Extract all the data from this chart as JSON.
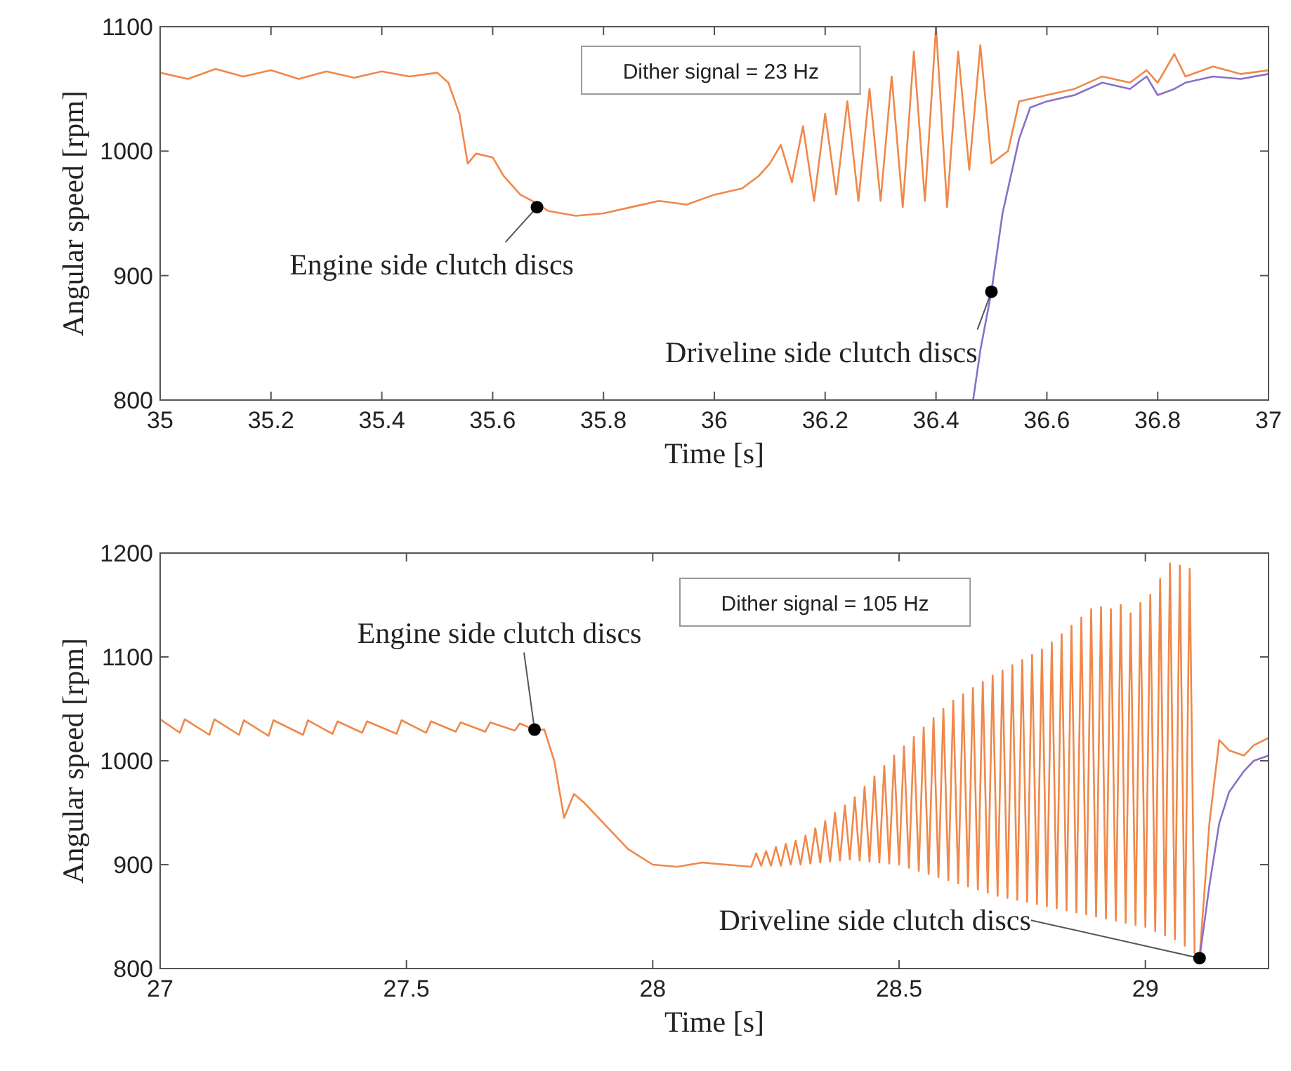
{
  "chart_data": [
    {
      "type": "line",
      "xlabel": "Time [s]",
      "ylabel": "Angular speed [rpm]",
      "xlim": [
        35,
        37
      ],
      "ylim": [
        800,
        1100
      ],
      "xticks": [
        35,
        35.2,
        35.4,
        35.6,
        35.8,
        36,
        36.2,
        36.4,
        36.6,
        36.8,
        37
      ],
      "yticks": [
        800,
        900,
        1000,
        1100
      ],
      "series": [
        {
          "color": "#f0884a",
          "x": [
            35.0,
            35.05,
            35.1,
            35.15,
            35.2,
            35.25,
            35.3,
            35.35,
            35.4,
            35.45,
            35.5,
            35.52,
            35.54,
            35.555,
            35.57,
            35.6,
            35.62,
            35.65,
            35.68,
            35.7,
            35.75,
            35.8,
            35.85,
            35.9,
            35.95,
            36.0,
            36.05,
            36.08,
            36.1,
            36.12,
            36.14,
            36.16,
            36.18,
            36.2,
            36.22,
            36.24,
            36.26,
            36.28,
            36.3,
            36.32,
            36.34,
            36.36,
            36.38,
            36.4,
            36.42,
            36.44,
            36.46,
            36.48,
            36.5,
            36.53,
            36.55,
            36.6,
            36.65,
            36.7,
            36.75,
            36.78,
            36.8,
            36.83,
            36.85,
            36.9,
            36.95,
            37.0
          ],
          "values": [
            1063,
            1058,
            1066,
            1060,
            1065,
            1058,
            1064,
            1059,
            1064,
            1060,
            1063,
            1055,
            1030,
            990,
            998,
            995,
            980,
            965,
            958,
            952,
            948,
            950,
            955,
            960,
            957,
            965,
            970,
            980,
            990,
            1005,
            975,
            1020,
            960,
            1030,
            965,
            1040,
            960,
            1050,
            960,
            1060,
            955,
            1080,
            960,
            1100,
            955,
            1080,
            985,
            1085,
            990,
            1000,
            1040,
            1045,
            1050,
            1060,
            1055,
            1065,
            1055,
            1078,
            1060,
            1068,
            1062,
            1065
          ]
        },
        {
          "color": "#8a70c8",
          "x": [
            36.467,
            36.48,
            36.5,
            36.52,
            36.55,
            36.57,
            36.6,
            36.65,
            36.7,
            36.75,
            36.78,
            36.8,
            36.83,
            36.85,
            36.9,
            36.95,
            37.0
          ],
          "values": [
            800,
            840,
            887,
            950,
            1010,
            1035,
            1040,
            1045,
            1055,
            1050,
            1060,
            1045,
            1050,
            1055,
            1060,
            1058,
            1062
          ]
        }
      ],
      "annotations": [
        "Dither signal = 23 Hz",
        {
          "text": "Engine side clutch discs",
          "x": 35.68,
          "y": 955
        },
        {
          "text": "Driveline side clutch discs",
          "x": 36.5,
          "y": 887
        }
      ]
    },
    {
      "type": "line",
      "xlabel": "Time [s]",
      "ylabel": "Angular speed [rpm]",
      "xlim": [
        27,
        29.25
      ],
      "ylim": [
        800,
        1200
      ],
      "xticks": [
        27,
        27.5,
        28,
        28.5,
        29
      ],
      "yticks": [
        800,
        900,
        1000,
        1100,
        1200
      ],
      "series": [
        {
          "color": "#f0884a",
          "x": [
            27.0,
            27.04,
            27.05,
            27.1,
            27.11,
            27.16,
            27.17,
            27.22,
            27.23,
            27.29,
            27.3,
            27.35,
            27.36,
            27.41,
            27.42,
            27.48,
            27.49,
            27.54,
            27.55,
            27.6,
            27.61,
            27.66,
            27.67,
            27.72,
            27.73,
            27.76,
            27.78,
            27.8,
            27.82,
            27.84,
            27.86,
            27.9,
            27.95,
            28.0,
            28.05,
            28.1,
            28.15,
            28.2,
            28.21,
            28.22,
            28.23,
            28.24,
            28.25,
            28.26,
            28.27,
            28.28,
            28.29,
            28.3,
            28.31,
            28.32,
            28.33,
            28.34,
            28.35,
            28.36,
            28.37,
            28.38,
            28.39,
            28.4,
            28.41,
            28.42,
            28.43,
            28.44,
            28.45,
            28.46,
            28.47,
            28.48,
            28.49,
            28.5,
            28.51,
            28.52,
            28.53,
            28.54,
            28.55,
            28.56,
            28.57,
            28.58,
            28.59,
            28.6,
            28.61,
            28.62,
            28.63,
            28.64,
            28.65,
            28.66,
            28.67,
            28.68,
            28.69,
            28.7,
            28.71,
            28.72,
            28.73,
            28.74,
            28.75,
            28.76,
            28.77,
            28.78,
            28.79,
            28.8,
            28.81,
            28.82,
            28.83,
            28.84,
            28.85,
            28.86,
            28.87,
            28.88,
            28.89,
            28.9,
            28.91,
            28.92,
            28.93,
            28.94,
            28.95,
            28.96,
            28.97,
            28.98,
            28.99,
            29.0,
            29.01,
            29.02,
            29.03,
            29.04,
            29.05,
            29.06,
            29.07,
            29.08,
            29.09,
            29.1,
            29.11,
            29.13,
            29.15,
            29.17,
            29.2,
            29.22,
            29.25
          ],
          "values": [
            1040,
            1027,
            1040,
            1025,
            1040,
            1025,
            1039,
            1024,
            1039,
            1025,
            1039,
            1026,
            1038,
            1027,
            1038,
            1026,
            1039,
            1027,
            1038,
            1028,
            1037,
            1028,
            1037,
            1029,
            1036,
            1030,
            1030,
            1000,
            945,
            968,
            960,
            940,
            915,
            900,
            898,
            902,
            900,
            898,
            911,
            899,
            913,
            899,
            917,
            899,
            920,
            900,
            923,
            900,
            928,
            901,
            935,
            902,
            942,
            903,
            950,
            904,
            957,
            905,
            965,
            904,
            975,
            903,
            985,
            902,
            995,
            901,
            1005,
            900,
            1014,
            897,
            1023,
            894,
            1032,
            891,
            1041,
            888,
            1050,
            885,
            1058,
            882,
            1064,
            879,
            1070,
            876,
            1076,
            873,
            1082,
            870,
            1087,
            868,
            1092,
            866,
            1097,
            864,
            1102,
            862,
            1107,
            860,
            1114,
            858,
            1122,
            856,
            1130,
            854,
            1138,
            852,
            1146,
            850,
            1148,
            848,
            1146,
            846,
            1150,
            844,
            1142,
            842,
            1152,
            840,
            1160,
            836,
            1175,
            832,
            1190,
            828,
            1188,
            822,
            1185,
            815,
            810,
            940,
            1020,
            1010,
            1005,
            1015,
            1022
          ]
        },
        {
          "color": "#8a70c8",
          "x": [
            29.11,
            29.13,
            29.15,
            29.17,
            29.2,
            29.22,
            29.25
          ],
          "values": [
            810,
            880,
            940,
            970,
            990,
            1000,
            1005
          ]
        }
      ],
      "annotations": [
        "Dither signal = 105 Hz",
        {
          "text": "Engine side clutch discs",
          "x": 27.76,
          "y": 1030
        },
        {
          "text": "Driveline side clutch discs",
          "x": 29.11,
          "y": 810
        }
      ]
    }
  ]
}
